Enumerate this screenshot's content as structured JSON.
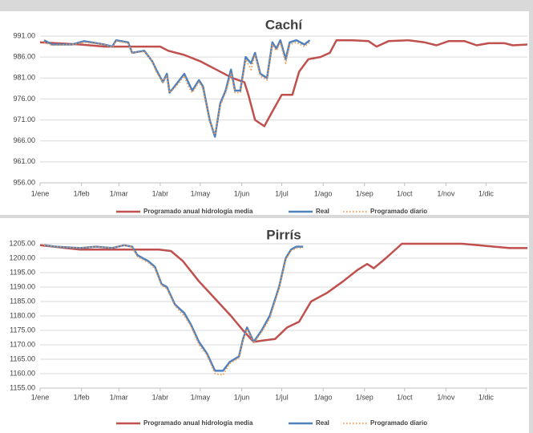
{
  "chart_data": [
    {
      "type": "line",
      "title": "Cachí",
      "xlim": [
        0,
        365
      ],
      "xticks": [
        {
          "value": 0,
          "label": "1/ene"
        },
        {
          "value": 31,
          "label": "1/feb"
        },
        {
          "value": 59,
          "label": "1/mar"
        },
        {
          "value": 90,
          "label": "1/abr"
        },
        {
          "value": 120,
          "label": "1/may"
        },
        {
          "value": 151,
          "label": "1/jun"
        },
        {
          "value": 181,
          "label": "1/jul"
        },
        {
          "value": 212,
          "label": "1/ago"
        },
        {
          "value": 243,
          "label": "1/sep"
        },
        {
          "value": 273,
          "label": "1/oct"
        },
        {
          "value": 304,
          "label": "1/nov"
        },
        {
          "value": 334,
          "label": "1/dic"
        }
      ],
      "ylim": [
        956,
        991
      ],
      "yticks": [
        {
          "value": 956,
          "label": "956.00"
        },
        {
          "value": 961,
          "label": "961.00"
        },
        {
          "value": 966,
          "label": "966.00"
        },
        {
          "value": 971,
          "label": "971.00"
        },
        {
          "value": 976,
          "label": "976.00"
        },
        {
          "value": 981,
          "label": "981.00"
        },
        {
          "value": 986,
          "label": "986.00"
        },
        {
          "value": 991,
          "label": "991.00"
        }
      ],
      "grid": true,
      "series": [
        {
          "name": "Programado anual hidrología media",
          "color": "#c0504d",
          "line_style": "solid",
          "x": [
            0,
            30,
            48,
            90,
            96,
            108,
            120,
            132,
            144,
            153,
            156,
            161,
            168,
            174,
            181,
            189,
            194,
            201,
            210,
            217,
            222,
            234,
            246,
            252,
            261,
            276,
            288,
            297,
            306,
            318,
            327,
            336,
            348,
            354,
            365
          ],
          "values": [
            989.5,
            989,
            988.5,
            988.5,
            987.5,
            986.5,
            985,
            983,
            981,
            980,
            977,
            971,
            969.5,
            973,
            977,
            977,
            982.5,
            985.5,
            986,
            987,
            990,
            990,
            989.8,
            988.5,
            989.8,
            990,
            989.5,
            988.8,
            989.8,
            989.8,
            988.8,
            989.3,
            989.3,
            988.8,
            989
          ]
        },
        {
          "name": "Real",
          "color": "#4f81bd",
          "line_style": "solid",
          "x": [
            3,
            9,
            24,
            33,
            48,
            54,
            57,
            66,
            69,
            78,
            84,
            87,
            92,
            95,
            97,
            102,
            108,
            111,
            114,
            119,
            122,
            127,
            131,
            135,
            139,
            143,
            146,
            150,
            154,
            158,
            161,
            165,
            170,
            174,
            177,
            180,
            184,
            187,
            192,
            198,
            202
          ],
          "values": [
            990,
            989,
            989,
            989.8,
            989,
            988.5,
            990,
            989.5,
            987,
            987.5,
            985,
            983,
            980,
            982,
            977.5,
            979.5,
            982,
            980,
            978,
            980.5,
            979,
            971,
            967,
            975,
            978,
            983,
            978,
            978,
            986,
            984.5,
            987,
            982,
            981,
            989.5,
            988,
            990,
            985.5,
            989.5,
            990,
            989,
            990
          ]
        },
        {
          "name": "Programado diario",
          "color": "#f79646",
          "line_style": "dotted",
          "x": [
            3,
            9,
            24,
            33,
            48,
            54,
            57,
            66,
            69,
            78,
            84,
            87,
            92,
            95,
            97,
            102,
            108,
            111,
            114,
            119,
            122,
            127,
            131,
            135,
            139,
            143,
            146,
            150,
            154,
            158,
            161,
            165,
            170,
            174,
            177,
            180,
            184,
            187,
            192,
            198,
            202
          ],
          "values": [
            989.5,
            988.8,
            989,
            989.5,
            989,
            988.3,
            989.8,
            989.3,
            987,
            987.3,
            985,
            982.5,
            980,
            981.5,
            977.5,
            979,
            981.5,
            979,
            977.5,
            980,
            978.5,
            970.5,
            967.5,
            974.5,
            977.5,
            982,
            977.5,
            977.5,
            985.5,
            983,
            986.5,
            981.5,
            980.5,
            989,
            987.5,
            989.5,
            984.5,
            989,
            989.5,
            988.5,
            989.5
          ]
        }
      ]
    },
    {
      "type": "line",
      "title": "Pirrís",
      "xlim": [
        0,
        365
      ],
      "xticks": [
        {
          "value": 0,
          "label": "1/ene"
        },
        {
          "value": 31,
          "label": "1/feb"
        },
        {
          "value": 59,
          "label": "1/mar"
        },
        {
          "value": 90,
          "label": "1/abr"
        },
        {
          "value": 120,
          "label": "1/may"
        },
        {
          "value": 151,
          "label": "1/jun"
        },
        {
          "value": 181,
          "label": "1/jul"
        },
        {
          "value": 212,
          "label": "1/ago"
        },
        {
          "value": 243,
          "label": "1/sep"
        },
        {
          "value": 273,
          "label": "1/oct"
        },
        {
          "value": 304,
          "label": "1/nov"
        },
        {
          "value": 334,
          "label": "1/dic"
        }
      ],
      "ylim": [
        1155,
        1205
      ],
      "yticks": [
        {
          "value": 1155,
          "label": "1155.00"
        },
        {
          "value": 1160,
          "label": "1160.00"
        },
        {
          "value": 1165,
          "label": "1165.00"
        },
        {
          "value": 1170,
          "label": "1170.00"
        },
        {
          "value": 1175,
          "label": "1175.00"
        },
        {
          "value": 1180,
          "label": "1180.00"
        },
        {
          "value": 1185,
          "label": "1185.00"
        },
        {
          "value": 1190,
          "label": "1190.00"
        },
        {
          "value": 1195,
          "label": "1195.00"
        },
        {
          "value": 1200,
          "label": "1200.00"
        },
        {
          "value": 1205,
          "label": "1205.00"
        }
      ],
      "grid": true,
      "series": [
        {
          "name": "Programado anual hidrología media",
          "color": "#c0504d",
          "line_style": "solid",
          "x": [
            0,
            30,
            60,
            89,
            98,
            107,
            119,
            131,
            143,
            152,
            160,
            167,
            176,
            185,
            194,
            203,
            215,
            227,
            238,
            245,
            250,
            259,
            271,
            286,
            316,
            328,
            340,
            352,
            365
          ],
          "values": [
            1204.5,
            1203,
            1203,
            1203,
            1202.5,
            1199,
            1192,
            1186,
            1180,
            1175,
            1171,
            1171.5,
            1172,
            1176,
            1178,
            1185,
            1188,
            1192,
            1196,
            1198,
            1196.5,
            1200,
            1205,
            1205,
            1205,
            1204.5,
            1204,
            1203.5,
            1203.5
          ]
        },
        {
          "name": "Real",
          "color": "#4f81bd",
          "line_style": "solid",
          "x": [
            3,
            12,
            30,
            42,
            54,
            63,
            69,
            73,
            81,
            86,
            91,
            95,
            101,
            108,
            113,
            119,
            125,
            131,
            137,
            142,
            149,
            152,
            155,
            160,
            166,
            172,
            179,
            184,
            188,
            192,
            197
          ],
          "values": [
            1204.5,
            1204,
            1203.5,
            1204,
            1203.5,
            1204.5,
            1204,
            1201,
            1199,
            1197,
            1191,
            1190,
            1184,
            1181,
            1177,
            1171,
            1167,
            1161,
            1161,
            1164,
            1166,
            1172,
            1176,
            1171,
            1175,
            1180,
            1190,
            1200,
            1203,
            1204,
            1204
          ]
        },
        {
          "name": "Programado diario",
          "color": "#f79646",
          "line_style": "dotted",
          "x": [
            3,
            12,
            30,
            42,
            54,
            63,
            69,
            73,
            81,
            86,
            91,
            95,
            101,
            108,
            113,
            119,
            125,
            131,
            137,
            142,
            149,
            152,
            155,
            160,
            166,
            172,
            179,
            184,
            188,
            192,
            197
          ],
          "values": [
            1204.5,
            1204,
            1203.5,
            1204,
            1203.5,
            1204.5,
            1204,
            1200.5,
            1198.5,
            1196.5,
            1190.5,
            1189.5,
            1183.5,
            1180,
            1176.5,
            1170,
            1166.5,
            1160,
            1159.5,
            1163.5,
            1165.5,
            1171.5,
            1175.5,
            1170.5,
            1174.5,
            1179,
            1189.5,
            1199.5,
            1202.5,
            1203.5,
            1203.5
          ]
        }
      ]
    }
  ]
}
